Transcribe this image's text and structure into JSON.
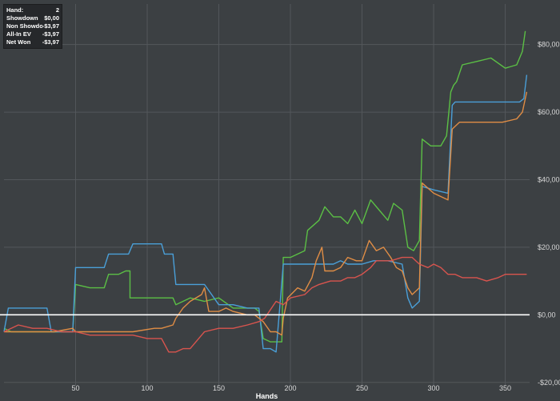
{
  "info_panel": {
    "rows": [
      {
        "label": "Hand:",
        "value": "2"
      },
      {
        "label": "Showdown",
        "value": "$0,00"
      },
      {
        "label": "Non Showdown",
        "value": "-$3,97"
      },
      {
        "label": "All-In EV",
        "value": "-$3,97"
      },
      {
        "label": "Net Won",
        "value": "-$3,97"
      }
    ]
  },
  "chart_data": {
    "type": "line",
    "xlabel": "Hands",
    "ylabel": "",
    "xlim": [
      0,
      367
    ],
    "ylim": [
      -21,
      92
    ],
    "x_ticks": [
      50,
      100,
      150,
      200,
      250,
      300,
      350
    ],
    "y_ticks": [
      -20,
      0,
      20,
      40,
      60,
      80
    ],
    "y_tick_labels": [
      "-$20,00",
      "$0,00",
      "$20,00",
      "$40,00",
      "$60,00",
      "$80,00"
    ],
    "grid": true,
    "background": "#3c4043",
    "grid_color": "#53575b",
    "zero_line_color": "#ffffff",
    "series": [
      {
        "color": "#5bbf45",
        "points": [
          [
            0,
            -4
          ],
          [
            5,
            -5
          ],
          [
            20,
            -5
          ],
          [
            35,
            -5
          ],
          [
            48,
            -5
          ],
          [
            50,
            9
          ],
          [
            60,
            8
          ],
          [
            70,
            8
          ],
          [
            73,
            12
          ],
          [
            80,
            12
          ],
          [
            85,
            13
          ],
          [
            88,
            13
          ],
          [
            88,
            5
          ],
          [
            100,
            5
          ],
          [
            110,
            5
          ],
          [
            118,
            5
          ],
          [
            120,
            3
          ],
          [
            130,
            5
          ],
          [
            140,
            4
          ],
          [
            150,
            5
          ],
          [
            160,
            2
          ],
          [
            170,
            2
          ],
          [
            175,
            2
          ],
          [
            178,
            1
          ],
          [
            181,
            -7
          ],
          [
            186,
            -8
          ],
          [
            190,
            -8
          ],
          [
            194,
            -8
          ],
          [
            195,
            17
          ],
          [
            200,
            17
          ],
          [
            210,
            19
          ],
          [
            212,
            25
          ],
          [
            220,
            28
          ],
          [
            224,
            32
          ],
          [
            230,
            29
          ],
          [
            235,
            29
          ],
          [
            240,
            27
          ],
          [
            245,
            31
          ],
          [
            250,
            27
          ],
          [
            256,
            34
          ],
          [
            262,
            31
          ],
          [
            268,
            28
          ],
          [
            272,
            33
          ],
          [
            278,
            31
          ],
          [
            282,
            20
          ],
          [
            286,
            19
          ],
          [
            290,
            22
          ],
          [
            292,
            52
          ],
          [
            298,
            50
          ],
          [
            305,
            50
          ],
          [
            309,
            53
          ],
          [
            312,
            66
          ],
          [
            314,
            68
          ],
          [
            316,
            69
          ],
          [
            320,
            74
          ],
          [
            330,
            75
          ],
          [
            340,
            76
          ],
          [
            350,
            73
          ],
          [
            358,
            74
          ],
          [
            362,
            78
          ],
          [
            364,
            84
          ]
        ]
      },
      {
        "color": "#4a9fd8",
        "points": [
          [
            0,
            -5
          ],
          [
            3,
            2
          ],
          [
            15,
            2
          ],
          [
            30,
            2
          ],
          [
            33,
            -5
          ],
          [
            48,
            -5
          ],
          [
            50,
            14
          ],
          [
            60,
            14
          ],
          [
            70,
            14
          ],
          [
            73,
            18
          ],
          [
            80,
            18
          ],
          [
            87,
            18
          ],
          [
            90,
            21
          ],
          [
            100,
            21
          ],
          [
            110,
            21
          ],
          [
            112,
            18
          ],
          [
            118,
            18
          ],
          [
            120,
            9
          ],
          [
            130,
            9
          ],
          [
            140,
            9
          ],
          [
            150,
            3
          ],
          [
            160,
            3
          ],
          [
            170,
            2
          ],
          [
            178,
            2
          ],
          [
            181,
            -10
          ],
          [
            186,
            -10
          ],
          [
            190,
            -11
          ],
          [
            195,
            15
          ],
          [
            200,
            15
          ],
          [
            210,
            15
          ],
          [
            220,
            15
          ],
          [
            230,
            15
          ],
          [
            235,
            16
          ],
          [
            240,
            15
          ],
          [
            245,
            15
          ],
          [
            250,
            15
          ],
          [
            258,
            16
          ],
          [
            268,
            16
          ],
          [
            278,
            15
          ],
          [
            282,
            5
          ],
          [
            285,
            2
          ],
          [
            290,
            4
          ],
          [
            292,
            38
          ],
          [
            300,
            37
          ],
          [
            310,
            36
          ],
          [
            313,
            62
          ],
          [
            315,
            63
          ],
          [
            330,
            63
          ],
          [
            345,
            63
          ],
          [
            360,
            63
          ],
          [
            363,
            64
          ],
          [
            365,
            71
          ]
        ]
      },
      {
        "color": "#e08d45",
        "points": [
          [
            0,
            -5
          ],
          [
            10,
            -5
          ],
          [
            20,
            -5
          ],
          [
            35,
            -5
          ],
          [
            48,
            -4
          ],
          [
            50,
            -5
          ],
          [
            60,
            -5
          ],
          [
            75,
            -5
          ],
          [
            90,
            -5
          ],
          [
            105,
            -4
          ],
          [
            110,
            -4
          ],
          [
            118,
            -3
          ],
          [
            120,
            -1
          ],
          [
            125,
            2
          ],
          [
            130,
            4
          ],
          [
            138,
            6
          ],
          [
            140,
            8
          ],
          [
            143,
            1
          ],
          [
            150,
            1
          ],
          [
            155,
            2
          ],
          [
            160,
            1
          ],
          [
            170,
            0
          ],
          [
            175,
            0
          ],
          [
            178,
            -1
          ],
          [
            181,
            -2
          ],
          [
            186,
            -5
          ],
          [
            190,
            -5
          ],
          [
            194,
            -6
          ],
          [
            195,
            -1
          ],
          [
            198,
            5
          ],
          [
            205,
            8
          ],
          [
            210,
            7
          ],
          [
            215,
            11
          ],
          [
            218,
            16
          ],
          [
            222,
            20
          ],
          [
            224,
            13
          ],
          [
            230,
            13
          ],
          [
            235,
            14
          ],
          [
            240,
            17
          ],
          [
            246,
            16
          ],
          [
            250,
            16
          ],
          [
            255,
            22
          ],
          [
            260,
            19
          ],
          [
            265,
            20
          ],
          [
            270,
            17
          ],
          [
            274,
            14
          ],
          [
            278,
            13
          ],
          [
            282,
            8
          ],
          [
            285,
            6
          ],
          [
            290,
            8
          ],
          [
            292,
            39
          ],
          [
            300,
            36
          ],
          [
            310,
            34
          ],
          [
            313,
            55
          ],
          [
            318,
            57
          ],
          [
            325,
            57
          ],
          [
            332,
            57
          ],
          [
            340,
            57
          ],
          [
            348,
            57
          ],
          [
            358,
            58
          ],
          [
            362,
            60
          ],
          [
            365,
            66
          ]
        ]
      },
      {
        "color": "#d9544e",
        "points": [
          [
            0,
            -5
          ],
          [
            10,
            -3
          ],
          [
            20,
            -4
          ],
          [
            30,
            -4
          ],
          [
            40,
            -5
          ],
          [
            50,
            -5
          ],
          [
            60,
            -6
          ],
          [
            70,
            -6
          ],
          [
            80,
            -6
          ],
          [
            90,
            -6
          ],
          [
            100,
            -7
          ],
          [
            110,
            -7
          ],
          [
            115,
            -11
          ],
          [
            120,
            -11
          ],
          [
            125,
            -10
          ],
          [
            130,
            -10
          ],
          [
            140,
            -5
          ],
          [
            150,
            -4
          ],
          [
            160,
            -4
          ],
          [
            170,
            -3
          ],
          [
            178,
            -2
          ],
          [
            182,
            -1
          ],
          [
            190,
            4
          ],
          [
            195,
            3
          ],
          [
            200,
            5
          ],
          [
            210,
            6
          ],
          [
            215,
            8
          ],
          [
            220,
            9
          ],
          [
            228,
            10
          ],
          [
            235,
            10
          ],
          [
            240,
            11
          ],
          [
            245,
            11
          ],
          [
            250,
            12
          ],
          [
            256,
            14
          ],
          [
            260,
            16
          ],
          [
            270,
            16
          ],
          [
            278,
            17
          ],
          [
            285,
            17
          ],
          [
            290,
            15
          ],
          [
            296,
            14
          ],
          [
            300,
            15
          ],
          [
            305,
            14
          ],
          [
            310,
            12
          ],
          [
            315,
            12
          ],
          [
            320,
            11
          ],
          [
            330,
            11
          ],
          [
            337,
            10
          ],
          [
            345,
            11
          ],
          [
            350,
            12
          ],
          [
            358,
            12
          ],
          [
            365,
            12
          ]
        ]
      }
    ]
  }
}
